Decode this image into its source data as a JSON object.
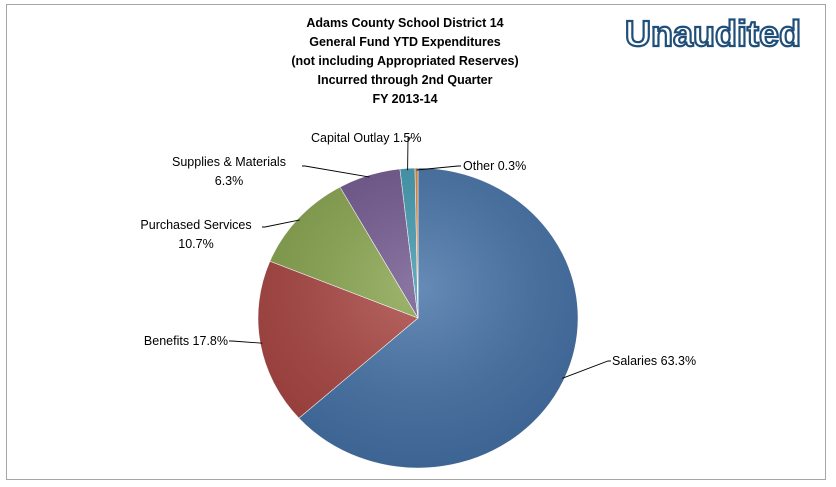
{
  "chart_data": {
    "type": "pie",
    "title_lines": [
      "Adams County School District 14",
      "General Fund YTD Expenditures",
      "(not including Appropriated Reserves)",
      "Incurred through 2nd Quarter",
      "FY 2013-14"
    ],
    "stamp": "Unaudited",
    "slices": [
      {
        "label": "Salaries",
        "value": 63.3,
        "display": "Salaries 63.3%",
        "color": "#4572a7"
      },
      {
        "label": "Benefits",
        "value": 17.8,
        "display": "Benefits 17.8%",
        "color": "#aa4643"
      },
      {
        "label": "Purchased Services",
        "value": 10.7,
        "display_lines": [
          "Purchased Services",
          "10.7%"
        ],
        "color": "#89a54e"
      },
      {
        "label": "Supplies & Materials",
        "value": 6.3,
        "display_lines": [
          "Supplies & Materials",
          "6.3%"
        ],
        "color": "#71588f"
      },
      {
        "label": "Capital Outlay",
        "value": 1.5,
        "display": "Capital Outlay 1.5%",
        "color": "#4198af"
      },
      {
        "label": "Other",
        "value": 0.3,
        "display": "Other 0.3%",
        "color": "#db843d"
      }
    ]
  }
}
